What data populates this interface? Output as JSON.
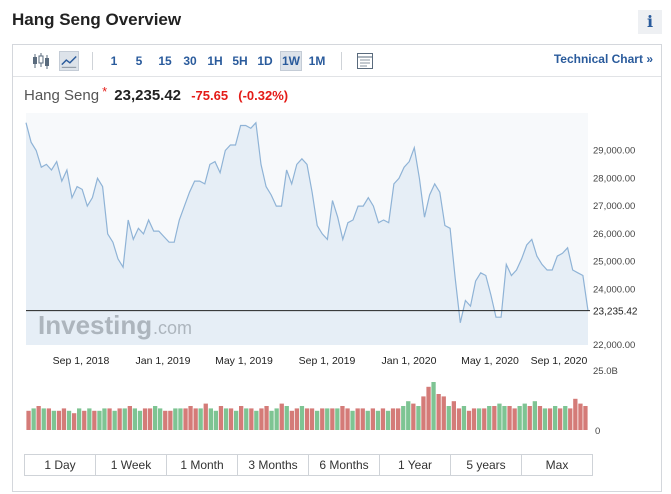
{
  "header": {
    "title": "Hang Seng Overview",
    "info_icon": "info-icon"
  },
  "toolbar": {
    "chart_type_icons": [
      "candlestick-icon",
      "line-chart-icon"
    ],
    "intervals": [
      "1",
      "5",
      "15",
      "30",
      "1H",
      "5H",
      "1D",
      "1W",
      "1M"
    ],
    "active_interval": "1W",
    "settings_icon": "chart-settings-icon",
    "technical_chart_label": "Technical Chart",
    "technical_chart_arrow": "»"
  },
  "quote": {
    "name": "Hang Seng",
    "marker": "*",
    "price": "23,235.42",
    "change": "-75.65",
    "change_pct": "(-0.32%)",
    "change_color": "#e41b17"
  },
  "watermark": {
    "brand": "Investing",
    "suffix": ".com"
  },
  "range_buttons": [
    "1 Day",
    "1 Week",
    "1 Month",
    "3 Months",
    "6 Months",
    "1 Year",
    "5 years",
    "Max"
  ],
  "colors": {
    "line": "#8fb3d6",
    "area": "#e6eef6",
    "volume_up": "#7ec493",
    "volume_down": "#d47b78",
    "accent_blue": "#2a5b9c",
    "negative": "#e41b17"
  },
  "chart_data": {
    "type": "area",
    "x_tick_labels": [
      "Sep 1, 2018",
      "Jan 1, 2019",
      "May 1, 2019",
      "Sep 1, 2019",
      "Jan 1, 2020",
      "May 1, 2020",
      "Sep 1, 2020"
    ],
    "y_tick_labels": [
      "29,000.00",
      "28,000.00",
      "27,000.00",
      "26,000.00",
      "25,000.00",
      "24,000.00",
      "22,000.00"
    ],
    "y_ticks": [
      29000,
      28000,
      27000,
      26000,
      25000,
      24000,
      22000
    ],
    "ylim": [
      22000,
      30350
    ],
    "last_value": 23235.42,
    "last_value_label": "23,235.42",
    "series": [
      {
        "values": [
          30000,
          29300,
          29000,
          28400,
          28500,
          28300,
          28600,
          27900,
          28300,
          27300,
          27700,
          27600,
          27000,
          27300,
          28000,
          27700,
          26000,
          25700,
          25100,
          24800,
          26500,
          25800,
          26200,
          26000,
          26500,
          26100,
          26100,
          25900,
          25700,
          25700,
          26500,
          27000,
          27500,
          27900,
          27900,
          27800,
          28500,
          28600,
          28200,
          29000,
          29200,
          29200,
          29900,
          29900,
          29800,
          30000,
          28500,
          27700,
          27400,
          27000,
          27000,
          28300,
          27800,
          28500,
          28700,
          28500,
          27500,
          26300,
          26000,
          25800,
          27200,
          26600,
          25800,
          26400,
          26500,
          27000,
          27000,
          27300,
          27000,
          26400,
          26500,
          26400,
          27800,
          28000,
          28400,
          28600,
          29100,
          28000,
          26600,
          27400,
          27800,
          27500,
          26300,
          26200,
          24400,
          22800,
          23600,
          23400,
          24300,
          24600,
          24500,
          23800,
          23000,
          23000,
          24900,
          24500,
          24700,
          25100,
          25600,
          25800,
          25200,
          24900,
          24700,
          24700,
          25200,
          25300,
          25500,
          24700,
          24600,
          24500,
          23235.42
        ]
      }
    ],
    "volume": {
      "axis_labels": [
        "25.0B",
        "0"
      ],
      "values": [
        8,
        9,
        10,
        9,
        9,
        8,
        8,
        9,
        8,
        7,
        9,
        8,
        9,
        8,
        8,
        9,
        9,
        8,
        9,
        9,
        10,
        9,
        8,
        9,
        9,
        10,
        9,
        8,
        8,
        9,
        9,
        9,
        10,
        9,
        9,
        11,
        9,
        8,
        10,
        9,
        9,
        8,
        10,
        9,
        9,
        8,
        9,
        10,
        8,
        9,
        11,
        10,
        8,
        9,
        10,
        9,
        9,
        8,
        9,
        9,
        9,
        9,
        10,
        9,
        8,
        9,
        9,
        8,
        9,
        8,
        9,
        8,
        9,
        9,
        10,
        12,
        11,
        10,
        14,
        18,
        20,
        15,
        14,
        10,
        12,
        9,
        10,
        8,
        9,
        9,
        9,
        10,
        10,
        11,
        10,
        10,
        9,
        10,
        11,
        10,
        12,
        10,
        9,
        9,
        10,
        9,
        10,
        9,
        13,
        11,
        10
      ],
      "up": [
        false,
        true,
        false,
        true,
        false,
        true,
        false,
        false,
        true,
        false,
        true,
        false,
        true,
        false,
        true,
        true,
        false,
        true,
        false,
        true,
        false,
        true,
        true,
        false,
        false,
        true,
        true,
        false,
        false,
        true,
        true,
        false,
        false,
        false,
        true,
        false,
        true,
        true,
        false,
        true,
        false,
        true,
        false,
        true,
        false,
        true,
        false,
        false,
        true,
        true,
        false,
        true,
        false,
        false,
        true,
        false,
        false,
        true,
        false,
        true,
        false,
        true,
        false,
        false,
        true,
        false,
        false,
        true,
        false,
        true,
        false,
        true,
        false,
        false,
        true,
        true,
        false,
        true,
        false,
        false,
        true,
        false,
        false,
        true,
        false,
        false,
        true,
        false,
        false,
        true,
        false,
        true,
        false,
        true,
        true,
        false,
        false,
        true,
        true,
        false,
        true,
        false,
        true,
        false,
        true,
        false,
        true,
        false,
        false,
        false,
        false
      ]
    }
  }
}
